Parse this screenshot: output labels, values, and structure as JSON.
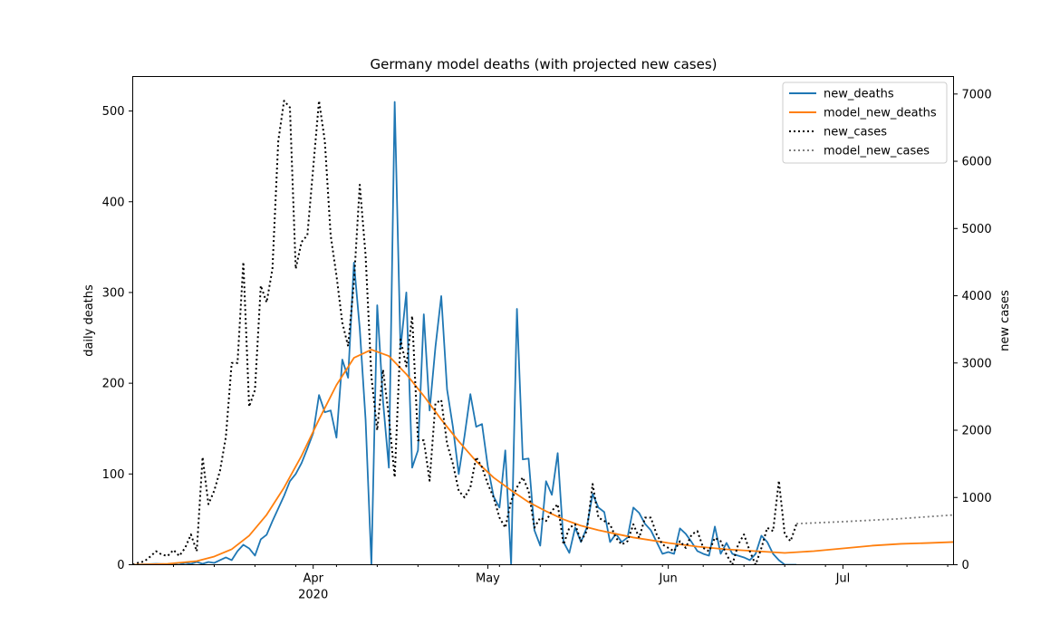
{
  "chart_data": {
    "type": "line",
    "title": "Germany model deaths (with projected new cases)",
    "ylabel_left": "daily deaths",
    "ylabel_right": "new cases",
    "x_range": [
      "2020-03-01",
      "2020-07-20"
    ],
    "ylim_left": [
      0,
      538
    ],
    "ylim_right": [
      0,
      7260
    ],
    "yticks_left": [
      0,
      100,
      200,
      300,
      400,
      500
    ],
    "yticks_right": [
      0,
      1000,
      2000,
      3000,
      4000,
      5000,
      6000,
      7000
    ],
    "xticks_major": [
      {
        "date": "2020-04-01",
        "label": "Apr",
        "sublabel": "2020"
      },
      {
        "date": "2020-05-01",
        "label": "May",
        "sublabel": ""
      },
      {
        "date": "2020-06-01",
        "label": "Jun",
        "sublabel": ""
      },
      {
        "date": "2020-07-01",
        "label": "Jul",
        "sublabel": ""
      }
    ],
    "xticks_minor": [
      "2020-03-08",
      "2020-03-15",
      "2020-03-22",
      "2020-03-29",
      "2020-04-05",
      "2020-04-12",
      "2020-04-19",
      "2020-04-26",
      "2020-05-03",
      "2020-05-10",
      "2020-05-17",
      "2020-05-24",
      "2020-05-31",
      "2020-06-07",
      "2020-06-14",
      "2020-06-21",
      "2020-06-28",
      "2020-07-05",
      "2020-07-12",
      "2020-07-19"
    ],
    "legend_position": "top-right",
    "colors": {
      "new_deaths": "#1f77b4",
      "model_new_deaths": "#ff7f0e",
      "new_cases": "#000000",
      "model_new_cases": "#808080"
    },
    "series": [
      {
        "name": "new_deaths",
        "axis": "left",
        "style": "solid",
        "x": [
          "2020-03-01",
          "2020-03-05",
          "2020-03-09",
          "2020-03-10",
          "2020-03-11",
          "2020-03-12",
          "2020-03-13",
          "2020-03-14",
          "2020-03-15",
          "2020-03-16",
          "2020-03-17",
          "2020-03-18",
          "2020-03-19",
          "2020-03-20",
          "2020-03-21",
          "2020-03-22",
          "2020-03-23",
          "2020-03-24",
          "2020-03-25",
          "2020-03-26",
          "2020-03-27",
          "2020-03-28",
          "2020-03-29",
          "2020-03-30",
          "2020-03-31",
          "2020-04-01",
          "2020-04-02",
          "2020-04-03",
          "2020-04-04",
          "2020-04-05",
          "2020-04-06",
          "2020-04-07",
          "2020-04-08",
          "2020-04-09",
          "2020-04-10",
          "2020-04-11",
          "2020-04-12",
          "2020-04-13",
          "2020-04-14",
          "2020-04-15",
          "2020-04-16",
          "2020-04-17",
          "2020-04-18",
          "2020-04-19",
          "2020-04-20",
          "2020-04-21",
          "2020-04-22",
          "2020-04-23",
          "2020-04-24",
          "2020-04-25",
          "2020-04-26",
          "2020-04-27",
          "2020-04-28",
          "2020-04-29",
          "2020-04-30",
          "2020-05-01",
          "2020-05-02",
          "2020-05-03",
          "2020-05-04",
          "2020-05-05",
          "2020-05-06",
          "2020-05-07",
          "2020-05-08",
          "2020-05-09",
          "2020-05-10",
          "2020-05-11",
          "2020-05-12",
          "2020-05-13",
          "2020-05-14",
          "2020-05-15",
          "2020-05-16",
          "2020-05-17",
          "2020-05-18",
          "2020-05-19",
          "2020-05-20",
          "2020-05-21",
          "2020-05-22",
          "2020-05-23",
          "2020-05-24",
          "2020-05-25",
          "2020-05-26",
          "2020-05-27",
          "2020-05-28",
          "2020-05-29",
          "2020-05-30",
          "2020-05-31",
          "2020-06-01",
          "2020-06-02",
          "2020-06-03",
          "2020-06-04",
          "2020-06-05",
          "2020-06-06",
          "2020-06-07",
          "2020-06-08",
          "2020-06-09",
          "2020-06-10",
          "2020-06-11",
          "2020-06-12",
          "2020-06-13",
          "2020-06-14",
          "2020-06-15",
          "2020-06-16",
          "2020-06-17",
          "2020-06-18",
          "2020-06-19",
          "2020-06-20",
          "2020-06-21",
          "2020-06-22",
          "2020-06-23"
        ],
        "values": [
          0,
          1,
          0,
          2,
          1,
          3,
          1,
          3,
          2,
          5,
          8,
          5,
          15,
          22,
          18,
          10,
          28,
          33,
          48,
          62,
          76,
          92,
          100,
          112,
          128,
          145,
          187,
          168,
          170,
          140,
          226,
          206,
          333,
          260,
          160,
          0,
          286,
          180,
          107,
          510,
          238,
          300,
          107,
          126,
          276,
          170,
          240,
          296,
          193,
          152,
          100,
          142,
          188,
          152,
          155,
          108,
          75,
          63,
          126,
          0,
          282,
          116,
          117,
          38,
          21,
          92,
          77,
          123,
          25,
          13,
          41,
          25,
          41,
          78,
          63,
          58,
          25,
          34,
          25,
          30,
          63,
          57,
          45,
          38,
          25,
          12,
          14,
          12,
          40,
          34,
          25,
          15,
          12,
          10,
          42,
          12,
          24,
          12,
          10,
          8,
          5,
          12,
          32,
          25,
          12,
          5,
          0,
          0,
          0
        ]
      },
      {
        "name": "model_new_deaths",
        "axis": "left",
        "style": "solid",
        "x": [
          "2020-03-01",
          "2020-03-07",
          "2020-03-12",
          "2020-03-15",
          "2020-03-18",
          "2020-03-21",
          "2020-03-24",
          "2020-03-27",
          "2020-03-30",
          "2020-04-02",
          "2020-04-05",
          "2020-04-08",
          "2020-04-11",
          "2020-04-14",
          "2020-04-17",
          "2020-04-20",
          "2020-04-23",
          "2020-04-26",
          "2020-04-29",
          "2020-05-02",
          "2020-05-05",
          "2020-05-08",
          "2020-05-11",
          "2020-05-14",
          "2020-05-17",
          "2020-05-20",
          "2020-05-23",
          "2020-05-26",
          "2020-05-29",
          "2020-06-01",
          "2020-06-06",
          "2020-06-11",
          "2020-06-16",
          "2020-06-21",
          "2020-06-26",
          "2020-07-01",
          "2020-07-06",
          "2020-07-11",
          "2020-07-16",
          "2020-07-20"
        ],
        "values": [
          0,
          1,
          4,
          9,
          17,
          32,
          55,
          85,
          120,
          160,
          198,
          228,
          237,
          230,
          210,
          186,
          160,
          136,
          114,
          96,
          82,
          69,
          59,
          50,
          43,
          38,
          34,
          30,
          27,
          24,
          20,
          17,
          15,
          13,
          15,
          18,
          21,
          23,
          24,
          25
        ]
      },
      {
        "name": "new_cases",
        "axis": "right",
        "style": "dotted",
        "x": [
          "2020-03-01",
          "2020-03-02",
          "2020-03-03",
          "2020-03-04",
          "2020-03-05",
          "2020-03-06",
          "2020-03-07",
          "2020-03-08",
          "2020-03-09",
          "2020-03-10",
          "2020-03-11",
          "2020-03-12",
          "2020-03-13",
          "2020-03-14",
          "2020-03-15",
          "2020-03-16",
          "2020-03-17",
          "2020-03-18",
          "2020-03-19",
          "2020-03-20",
          "2020-03-21",
          "2020-03-22",
          "2020-03-23",
          "2020-03-24",
          "2020-03-25",
          "2020-03-26",
          "2020-03-27",
          "2020-03-28",
          "2020-03-29",
          "2020-03-30",
          "2020-03-31",
          "2020-04-01",
          "2020-04-02",
          "2020-04-03",
          "2020-04-04",
          "2020-04-05",
          "2020-04-06",
          "2020-04-07",
          "2020-04-08",
          "2020-04-09",
          "2020-04-10",
          "2020-04-11",
          "2020-04-12",
          "2020-04-13",
          "2020-04-14",
          "2020-04-15",
          "2020-04-16",
          "2020-04-17",
          "2020-04-18",
          "2020-04-19",
          "2020-04-20",
          "2020-04-21",
          "2020-04-22",
          "2020-04-23",
          "2020-04-24",
          "2020-04-25",
          "2020-04-26",
          "2020-04-27",
          "2020-04-28",
          "2020-04-29",
          "2020-04-30",
          "2020-05-01",
          "2020-05-02",
          "2020-05-03",
          "2020-05-04",
          "2020-05-05",
          "2020-05-06",
          "2020-05-07",
          "2020-05-08",
          "2020-05-09",
          "2020-05-10",
          "2020-05-11",
          "2020-05-12",
          "2020-05-13",
          "2020-05-14",
          "2020-05-15",
          "2020-05-16",
          "2020-05-17",
          "2020-05-18",
          "2020-05-19",
          "2020-05-20",
          "2020-05-21",
          "2020-05-22",
          "2020-05-23",
          "2020-05-24",
          "2020-05-25",
          "2020-05-26",
          "2020-05-27",
          "2020-05-28",
          "2020-05-29",
          "2020-05-30",
          "2020-05-31",
          "2020-06-01",
          "2020-06-02",
          "2020-06-03",
          "2020-06-04",
          "2020-06-05",
          "2020-06-06",
          "2020-06-07",
          "2020-06-08",
          "2020-06-09",
          "2020-06-10",
          "2020-06-11",
          "2020-06-12",
          "2020-06-13",
          "2020-06-14",
          "2020-06-15",
          "2020-06-16",
          "2020-06-17",
          "2020-06-18",
          "2020-06-19",
          "2020-06-20",
          "2020-06-21",
          "2020-06-22",
          "2020-06-23"
        ],
        "values": [
          0,
          30,
          50,
          120,
          200,
          150,
          130,
          220,
          130,
          250,
          450,
          200,
          1600,
          900,
          1100,
          1400,
          1900,
          3000,
          3000,
          4500,
          2350,
          2600,
          4150,
          3900,
          4400,
          6300,
          6900,
          6800,
          4400,
          4800,
          4900,
          5900,
          6900,
          6300,
          4900,
          4300,
          3600,
          3250,
          4200,
          5650,
          4600,
          2800,
          2000,
          2900,
          2200,
          1300,
          3350,
          2950,
          3700,
          1850,
          1850,
          1250,
          2400,
          2450,
          1800,
          1500,
          1100,
          1000,
          1150,
          1600,
          1450,
          1200,
          1000,
          700,
          550,
          950,
          1150,
          1300,
          1100,
          550,
          700,
          650,
          800,
          900,
          300,
          550,
          600,
          350,
          500,
          1200,
          700,
          650,
          600,
          400,
          300,
          350,
          600,
          400,
          700,
          700,
          450,
          300,
          250,
          200,
          350,
          250,
          450,
          500,
          250,
          200,
          400,
          350,
          150,
          0,
          300,
          450,
          200,
          0,
          250,
          550,
          500,
          1250,
          450,
          350,
          600
        ]
      },
      {
        "name": "model_new_cases",
        "axis": "right",
        "style": "dotted",
        "x": [
          "2020-06-23",
          "2020-07-01",
          "2020-07-10",
          "2020-07-20"
        ],
        "values": [
          610,
          640,
          680,
          740
        ]
      }
    ]
  }
}
